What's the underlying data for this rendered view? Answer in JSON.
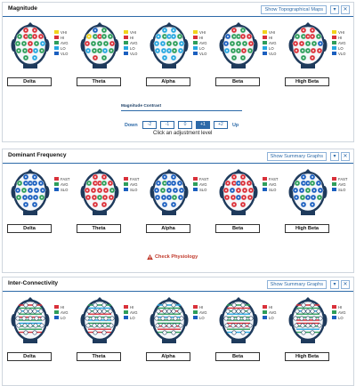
{
  "magnitude": {
    "title": "Magnitude",
    "button": "Show Topographical Maps",
    "legend": [
      "VHI",
      "HI",
      "AVG",
      "LO",
      "VLO"
    ],
    "bands": [
      "Delta",
      "Theta",
      "Alpha",
      "Beta",
      "High Beta"
    ],
    "contrast": {
      "title": "Magnitude Contrast",
      "down": "Down",
      "up": "Up",
      "levels": [
        "-2",
        "-1",
        "0",
        "+1",
        "+2"
      ],
      "selected": "+1",
      "note": "Click an adjustment level"
    }
  },
  "dominant": {
    "title": "Dominant Frequency",
    "button": "Show Summary Graphs",
    "legend": [
      "FAST",
      "AVG",
      "SLO"
    ],
    "bands": [
      "Delta",
      "Theta",
      "Alpha",
      "Beta",
      "High Beta"
    ],
    "warning": "Check Physiology"
  },
  "connectivity": {
    "title": "Inter-Connectivity",
    "button": "Show Summary Graphs",
    "legend": [
      "HI",
      "AVG",
      "LO"
    ],
    "bands": [
      "Delta",
      "Theta",
      "Alpha",
      "Beta",
      "High Beta"
    ]
  },
  "colors": {
    "vhi": "#f0d31c",
    "hi": "#d9313a",
    "avg": "#2e9e5b",
    "lo": "#27a7e0",
    "vlo": "#1b5fbf",
    "fast": "#d9313a",
    "slo": "#1b5fbf",
    "head": "#1e3a5c",
    "accent": "#2d6aa8"
  }
}
